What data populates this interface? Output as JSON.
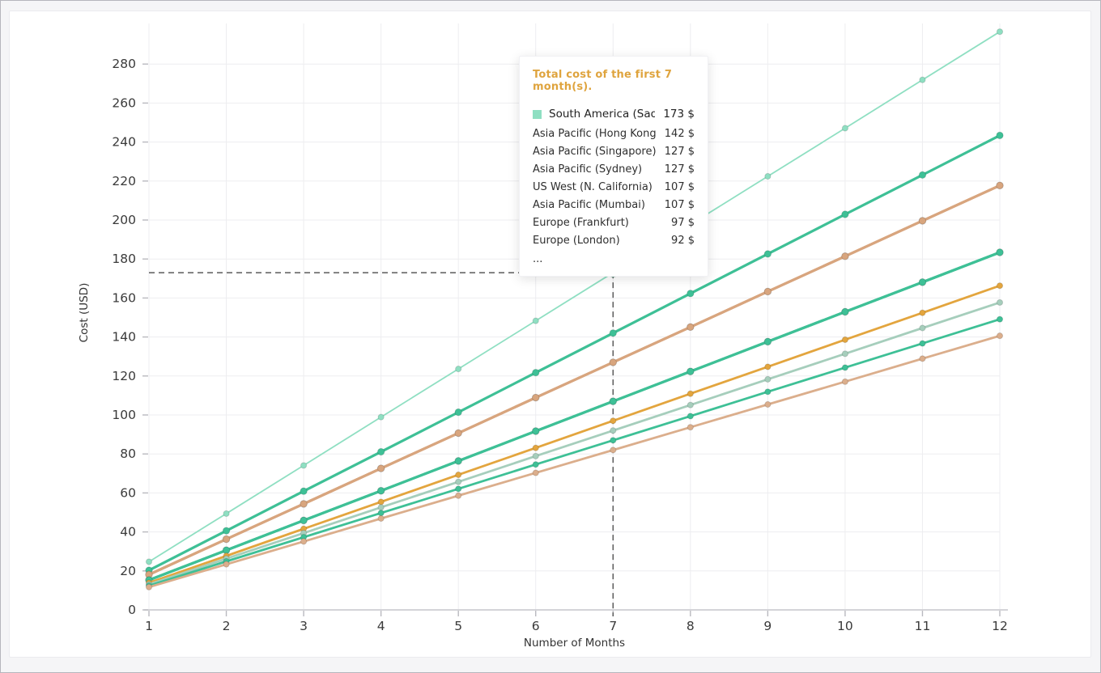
{
  "window": {
    "background_color": "#f5f5f7",
    "panel_color": "#ffffff",
    "frame_border_color": "#b6b6bd",
    "grid_color": "#ededf0",
    "axis_color": "#c6c6cc",
    "tick_color": "#b9b9bf",
    "text_color": "#3a3a3a"
  },
  "chart_data": {
    "type": "line",
    "title": "",
    "xlabel": "Number of Months",
    "ylabel": "Cost (USD)",
    "x": [
      1,
      2,
      3,
      4,
      5,
      6,
      7,
      8,
      9,
      10,
      11,
      12
    ],
    "xlim": [
      1,
      12
    ],
    "ylim": [
      0,
      300
    ],
    "ytick_step": 20,
    "ytick_max": 280,
    "grid": true,
    "legend_position": "tooltip-overlay",
    "crosshair": {
      "month": 7,
      "value": 173,
      "color": "#5a5a5a"
    },
    "series": [
      {
        "name": "South America (Sao Paulo)",
        "color": "#8FDFC2",
        "line_width": 1.8,
        "highlighted": true,
        "values": [
          24.7,
          49.4,
          74.1,
          98.9,
          123.6,
          148.3,
          173.0,
          197.7,
          222.4,
          247.1,
          271.9,
          296.6
        ]
      },
      {
        "name": "Asia Pacific (Hong Kong)",
        "color": "#3EC096",
        "line_width": 3.2,
        "values": [
          20.3,
          40.6,
          60.9,
          81.1,
          101.4,
          121.7,
          142.0,
          162.3,
          182.6,
          202.9,
          223.1,
          243.4
        ]
      },
      {
        "name": "Asia Pacific (Singapore)",
        "color": "#D8A57E",
        "line_width": 3.2,
        "values": [
          18.1,
          36.3,
          54.4,
          72.6,
          90.7,
          108.9,
          127.0,
          145.1,
          163.3,
          181.4,
          199.6,
          217.7
        ]
      },
      {
        "name": "Asia Pacific (Sydney)",
        "color": "#D8A57E",
        "line_width": 3.2,
        "values": [
          18.1,
          36.3,
          54.4,
          72.6,
          90.7,
          108.9,
          127.0,
          145.1,
          163.3,
          181.4,
          199.6,
          217.7
        ]
      },
      {
        "name": "US West (N. California)",
        "color": "#3EC096",
        "line_width": 3.2,
        "values": [
          15.3,
          30.6,
          45.9,
          61.1,
          76.4,
          91.7,
          107.0,
          122.3,
          137.6,
          152.9,
          168.1,
          183.4
        ]
      },
      {
        "name": "Asia Pacific (Mumbai)",
        "color": "#3EC096",
        "line_width": 3.2,
        "values": [
          15.3,
          30.6,
          45.9,
          61.1,
          76.4,
          91.7,
          107.0,
          122.3,
          137.6,
          152.9,
          168.1,
          183.4
        ]
      },
      {
        "name": "Europe (Frankfurt)",
        "color": "#E3A53E",
        "line_width": 2.8,
        "values": [
          13.9,
          27.7,
          41.6,
          55.4,
          69.3,
          83.1,
          97.0,
          110.9,
          124.7,
          138.6,
          152.4,
          166.3
        ]
      },
      {
        "name": "Europe (London)",
        "color": "#A6CEBC",
        "line_width": 2.8,
        "values": [
          13.1,
          26.3,
          39.4,
          52.6,
          65.7,
          78.9,
          92.0,
          105.1,
          118.3,
          131.4,
          144.6,
          157.7
        ]
      },
      {
        "name": "",
        "color": "#3EC096",
        "line_width": 2.8,
        "values": [
          12.4,
          24.9,
          37.3,
          49.7,
          62.1,
          74.6,
          87.0,
          99.4,
          111.9,
          124.3,
          136.7,
          149.1
        ]
      },
      {
        "name": "",
        "color": "#DBAE8C",
        "line_width": 2.8,
        "values": [
          11.7,
          23.4,
          35.1,
          46.9,
          58.6,
          70.3,
          82.0,
          93.7,
          105.4,
          117.1,
          128.9,
          140.6
        ]
      }
    ]
  },
  "tooltip": {
    "title": "Total cost of the first 7 month(s).",
    "title_color": "#DFA43E",
    "rows": [
      {
        "label": "South America (Sao Paulo)",
        "value": "173 $",
        "highlighted": true,
        "marker_color": "#8FDFC2"
      },
      {
        "label": "Asia Pacific (Hong Kong)",
        "value": "142 $"
      },
      {
        "label": "Asia Pacific (Singapore)",
        "value": "127 $"
      },
      {
        "label": "Asia Pacific (Sydney)",
        "value": "127 $"
      },
      {
        "label": "US West (N. California)",
        "value": "107 $"
      },
      {
        "label": "Asia Pacific (Mumbai)",
        "value": "107 $"
      },
      {
        "label": "Europe (Frankfurt)",
        "value": "97 $"
      },
      {
        "label": "Europe (London)",
        "value": "92 $"
      }
    ],
    "more_indicator": "..."
  }
}
